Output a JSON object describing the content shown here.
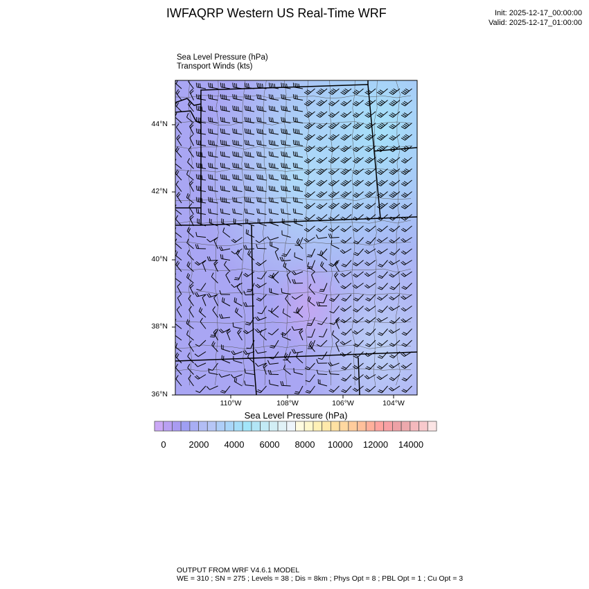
{
  "header": {
    "title": "IWFAQRP Western US Real-Time WRF",
    "init": "Init: 2025-12-17_00:00:00",
    "valid": "Valid: 2025-12-17_01:00:00"
  },
  "subtitles": {
    "field": "Sea Level Pressure   (hPa)",
    "overlay": "Transport Winds   (kts)"
  },
  "map": {
    "lat_labels": [
      "44°N",
      "42°N",
      "40°N",
      "38°N",
      "36°N"
    ],
    "lon_labels": [
      "110°W",
      "108°W",
      "106°W",
      "104°W"
    ],
    "boundary_color": "#000000",
    "county_color": "#555555"
  },
  "colorbar": {
    "title": "Sea Level Pressure  (hPa)",
    "labels": [
      "0",
      "2000",
      "4000",
      "6000",
      "8000",
      "10000",
      "12000",
      "14000"
    ],
    "colors": [
      "#cba8f6",
      "#b9a0f3",
      "#a99bf2",
      "#9f9ff3",
      "#a8aef4",
      "#b2bdf4",
      "#b6c6f6",
      "#aecef8",
      "#a9d6f9",
      "#a5def9",
      "#a2e5f9",
      "#b2e6f6",
      "#c2eaf5",
      "#d2eef5",
      "#e1f2f7",
      "#eef5fb",
      "#fffbe0",
      "#fff8cd",
      "#fff1b6",
      "#ffe9aa",
      "#ffe1a2",
      "#ffd8a0",
      "#ffcc9c",
      "#ffc09b",
      "#ffb09b",
      "#ffa49f",
      "#f8a0a4",
      "#eda1a6",
      "#eda9ad",
      "#f4b9bd",
      "#f8c9cc",
      "#fce5e5"
    ]
  },
  "footer": {
    "line1": "OUTPUT FROM WRF V4.6.1 MODEL",
    "line2": "WE = 310 ; SN = 275 ; Levels = 38 ; Dis = 8km ; Phys Opt = 8 ; PBL Opt = 1 ; Cu Opt = 3"
  }
}
